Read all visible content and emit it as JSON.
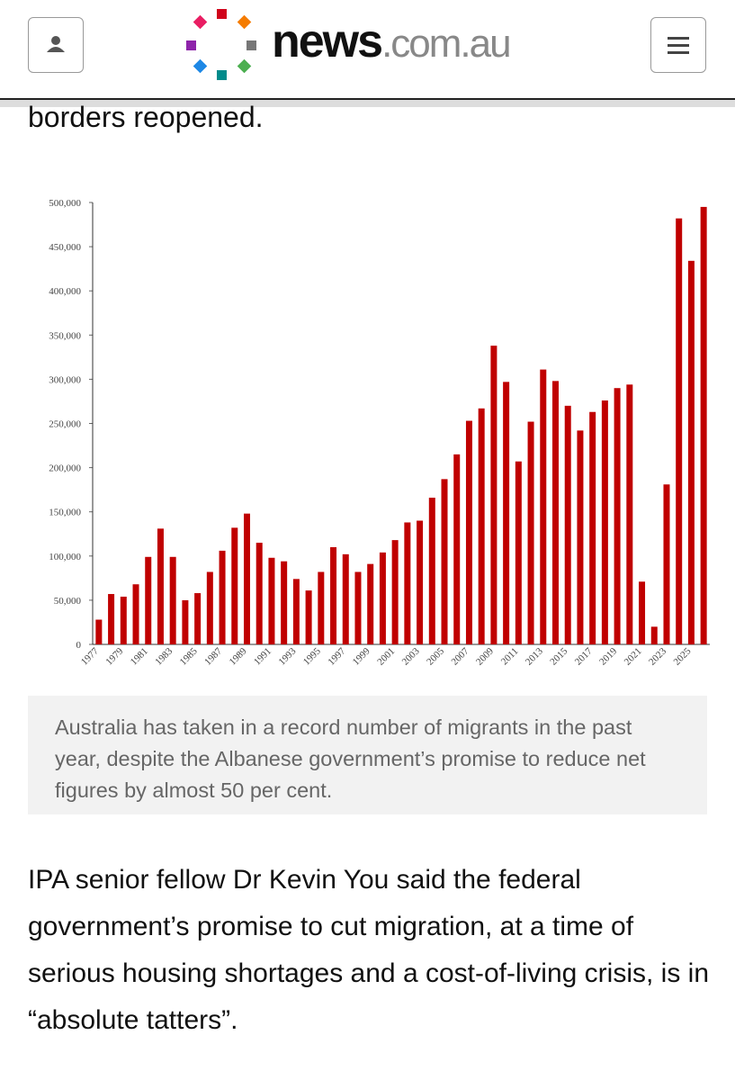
{
  "header": {
    "logo_main": "news",
    "logo_domain": ".com.au"
  },
  "article": {
    "lead_fragment": "borders reopened.",
    "caption": "Australia has taken in a record number of migrants in the past year, despite the Albanese government’s promise to reduce net figures by almost 50 per cent.",
    "paragraph": "IPA senior fellow Dr Kevin You said the federal government’s promise to cut migration, at a time of serious housing shortages and a cost-of-living crisis, is in “absolute tatters”."
  },
  "chart_data": {
    "type": "bar",
    "color": "#c00000",
    "categories": [
      "1977",
      null,
      "1979",
      null,
      "1981",
      null,
      "1983",
      null,
      "1985",
      null,
      "1987",
      null,
      "1989",
      null,
      "1991",
      null,
      "1993",
      null,
      "1995",
      null,
      "1997",
      null,
      "1999",
      null,
      "2001",
      null,
      "2003",
      null,
      "2005",
      null,
      "2007",
      null,
      "2009",
      null,
      "2011",
      null,
      "2013",
      null,
      "2015",
      null,
      "2017",
      null,
      "2019",
      null,
      "2021",
      null,
      "2023",
      null,
      "2025",
      null
    ],
    "values": [
      28000,
      57000,
      54000,
      68000,
      99000,
      131000,
      99000,
      50000,
      58000,
      82000,
      106000,
      132000,
      148000,
      115000,
      98000,
      94000,
      74000,
      61000,
      82000,
      110000,
      102000,
      82000,
      91000,
      104000,
      118000,
      138000,
      140000,
      166000,
      187000,
      215000,
      253000,
      267000,
      338000,
      297000,
      207000,
      252000,
      311000,
      298000,
      270000,
      242000,
      263000,
      276000,
      290000,
      294000,
      71000,
      20000,
      181000,
      482000,
      434000,
      495000
    ],
    "ylim": [
      0,
      500000
    ],
    "yticks": [
      0,
      {
        "value": 50000,
        "label": "50,000"
      },
      {
        "value": 100000,
        "label": "100,000"
      },
      {
        "value": 150000,
        "label": "150,000"
      },
      {
        "value": 200000,
        "label": "200,000"
      },
      {
        "value": 250000,
        "label": "250,000"
      },
      {
        "value": 300000,
        "label": "300,000"
      },
      {
        "value": 350000,
        "label": "350,000"
      },
      {
        "value": 400000,
        "label": "400,000"
      },
      {
        "value": 450000,
        "label": "450,000"
      },
      {
        "value": 500000,
        "label": "500,000"
      }
    ]
  }
}
